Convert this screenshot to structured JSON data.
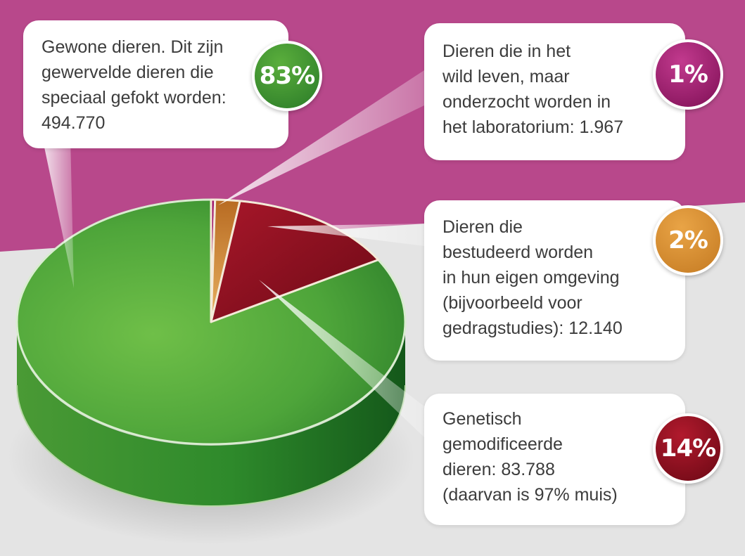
{
  "colors": {
    "top_band": "#b8488b",
    "bottom_band": "#e4e4e4",
    "regular": "#3d9a35",
    "wild": "#a0166a",
    "natural_habitat": "#d9902f",
    "genetically_modified": "#8e0f1e"
  },
  "chart_data": {
    "type": "pie",
    "slices": [
      {
        "key": "wild",
        "percent_label": "1%",
        "value": 1967,
        "description": [
          "Dieren die in het",
          "wild leven, maar",
          "onderzocht worden in",
          "het laboratorium: 1.967"
        ],
        "color": "#a0166a"
      },
      {
        "key": "natural_habitat",
        "percent_label": "2%",
        "value": 12140,
        "description": [
          "Dieren die",
          "bestudeerd worden",
          "in hun eigen omgeving",
          "(bijvoorbeeld voor",
          "gedragstudies): 12.140"
        ],
        "color": "#d9902f"
      },
      {
        "key": "genetically_modified",
        "percent_label": "14%",
        "value": 83788,
        "description": [
          "Genetisch",
          "gemodificeerde",
          "dieren: 83.788",
          "(daarvan is 97% muis)"
        ],
        "color": "#8e0f1e"
      },
      {
        "key": "regular",
        "percent_label": "83%",
        "value": 494770,
        "description": [
          "Gewone dieren. Dit zijn",
          "gewervelde dieren die",
          "speciaal gefokt worden:",
          "494.770"
        ],
        "color": "#3d9a35"
      }
    ]
  }
}
